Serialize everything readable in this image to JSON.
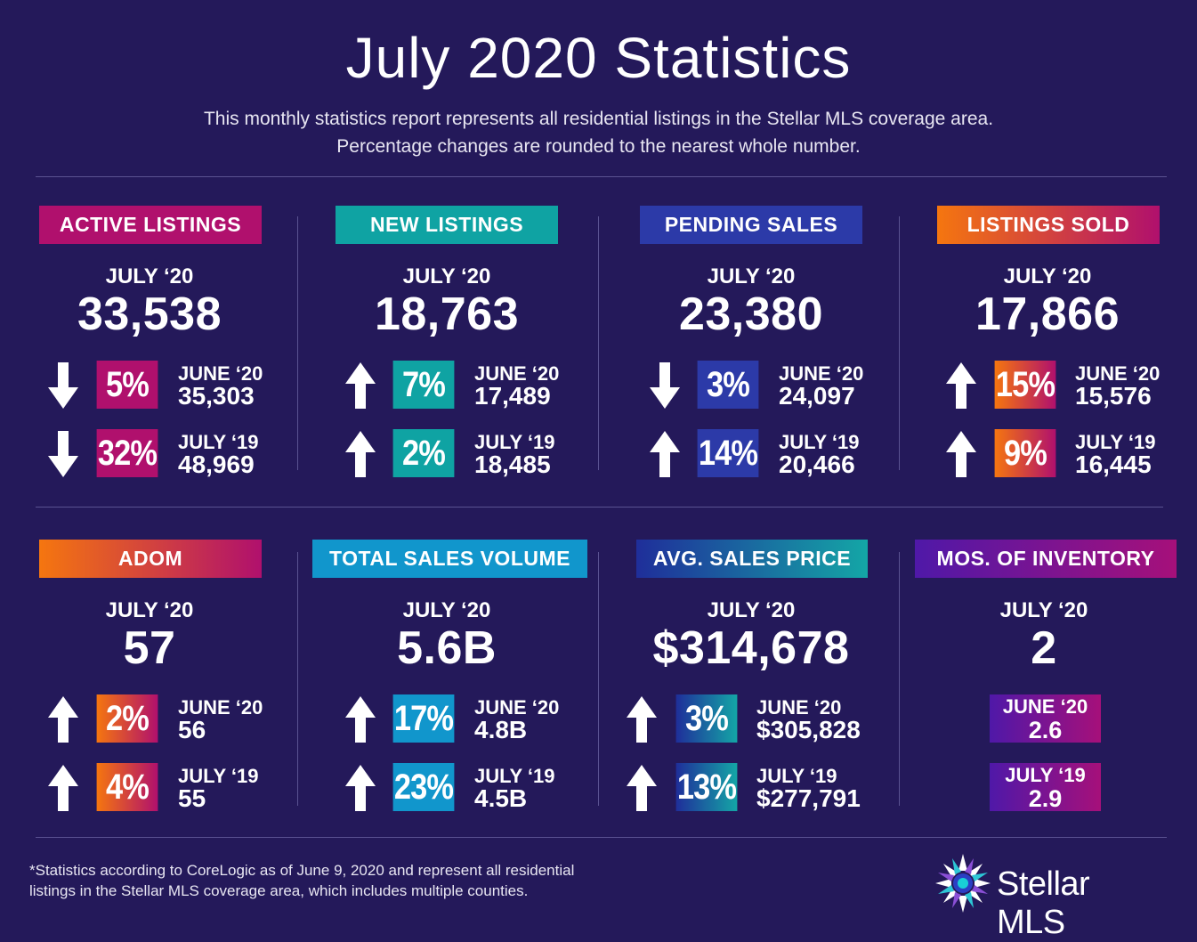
{
  "header": {
    "title": "July 2020 Statistics",
    "subtitle_line1": "This monthly statistics report represents all residential listings in the Stellar MLS coverage area.",
    "subtitle_line2": "Percentage changes are rounded to the nearest whole number."
  },
  "sections": {
    "active": {
      "label": "ACTIVE LISTINGS",
      "period": "JULY ‘20",
      "value": "33,538",
      "cmp1": {
        "direction": "down",
        "pct": "5%",
        "label": "JUNE ‘20",
        "value": "35,303"
      },
      "cmp2": {
        "direction": "down",
        "pct": "32%",
        "label": "JULY ‘19",
        "value": "48,969"
      }
    },
    "new": {
      "label": "NEW LISTINGS",
      "period": "JULY ‘20",
      "value": "18,763",
      "cmp1": {
        "direction": "up",
        "pct": "7%",
        "label": "JUNE ‘20",
        "value": "17,489"
      },
      "cmp2": {
        "direction": "up",
        "pct": "2%",
        "label": "JULY ‘19",
        "value": "18,485"
      }
    },
    "pending": {
      "label": "PENDING SALES",
      "period": "JULY ‘20",
      "value": "23,380",
      "cmp1": {
        "direction": "down",
        "pct": "3%",
        "label": "JUNE ‘20",
        "value": "24,097"
      },
      "cmp2": {
        "direction": "up",
        "pct": "14%",
        "label": "JULY ‘19",
        "value": "20,466"
      }
    },
    "sold": {
      "label": "LISTINGS SOLD",
      "period": "JULY ‘20",
      "value": "17,866",
      "cmp1": {
        "direction": "up",
        "pct": "15%",
        "label": "JUNE ‘20",
        "value": "15,576"
      },
      "cmp2": {
        "direction": "up",
        "pct": "9%",
        "label": "JULY ‘19",
        "value": "16,445"
      }
    },
    "adom": {
      "label": "ADOM",
      "period": "JULY ‘20",
      "value": "57",
      "cmp1": {
        "direction": "up",
        "pct": "2%",
        "label": "JUNE ‘20",
        "value": "56"
      },
      "cmp2": {
        "direction": "up",
        "pct": "4%",
        "label": "JULY ‘19",
        "value": "55"
      }
    },
    "volume": {
      "label": "TOTAL SALES VOLUME",
      "period": "JULY ‘20",
      "value": "5.6B",
      "cmp1": {
        "direction": "up",
        "pct": "17%",
        "label": "JUNE ‘20",
        "value": "4.8B"
      },
      "cmp2": {
        "direction": "up",
        "pct": "23%",
        "label": "JULY ‘19",
        "value": "4.5B"
      }
    },
    "price": {
      "label": "AVG. SALES PRICE",
      "period": "JULY ‘20",
      "value": "$314,678",
      "cmp1": {
        "direction": "up",
        "pct": "3%",
        "label": "JUNE ‘20",
        "value": "$305,828"
      },
      "cmp2": {
        "direction": "up",
        "pct": "13%",
        "label": "JULY ‘19",
        "value": "$277,791"
      }
    },
    "inventory": {
      "label": "MOS. OF INVENTORY",
      "period": "JULY ‘20",
      "value": "2",
      "cmp1": {
        "label": "JUNE ‘20",
        "value": "2.6"
      },
      "cmp2": {
        "label": "JULY ‘19",
        "value": "2.9"
      }
    }
  },
  "footnote": {
    "line1": "*Statistics according to CoreLogic as of June 9, 2020 and represent all residential",
    "line2": "listings in the Stellar MLS coverage area, which includes multiple counties."
  },
  "logo": {
    "text": "Stellar MLS"
  },
  "colors": {
    "background": "#24195a",
    "magenta": "#b0106d",
    "teal": "#0fa3a3",
    "royal_blue": "#2c3aa8",
    "orange_start": "#f5760f",
    "orange_end": "#b0106d",
    "sky_blue": "#1196cc",
    "navy_start": "#1f2e9a",
    "teal_end": "#14a6a6",
    "purple_start": "#4f18a8",
    "purple_end": "#a6107a"
  }
}
